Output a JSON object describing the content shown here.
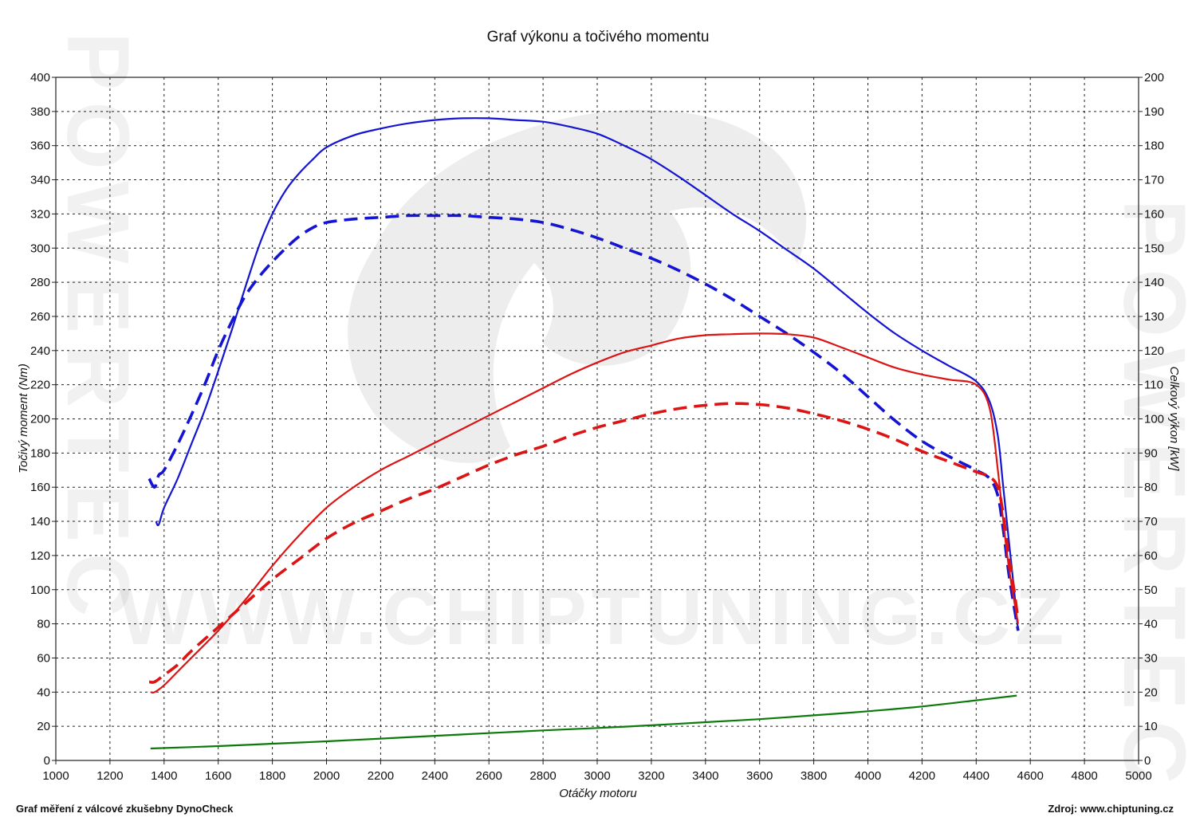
{
  "title": "Graf výkonu a točivého momentu",
  "footer_left": "Graf měření z válcové zkušebny DynoCheck",
  "footer_right": "Zdroj: www.chiptuning.cz",
  "watermark": "WWW.CHIPTUNING.CZ",
  "watermark_side": "POWERTEC",
  "chart_data": {
    "type": "line",
    "title": "Graf výkonu a točivého momentu",
    "xlabel": "Otáčky motoru",
    "ylabel_left": "Točivý moment (Nm)",
    "ylabel_right": "Celkový výkon [kW]",
    "xlim": [
      1000,
      5000
    ],
    "ylim_left": [
      0,
      400
    ],
    "ylim_right": [
      0,
      200
    ],
    "x_ticks": [
      1000,
      1200,
      1400,
      1600,
      1800,
      2000,
      2200,
      2400,
      2600,
      2800,
      3000,
      3200,
      3400,
      3600,
      3800,
      4000,
      4200,
      4400,
      4600,
      4800,
      5000
    ],
    "y_left_ticks": [
      0,
      20,
      40,
      60,
      80,
      100,
      120,
      140,
      160,
      180,
      200,
      220,
      240,
      260,
      280,
      300,
      320,
      340,
      360,
      380,
      400
    ],
    "y_right_ticks": [
      0,
      10,
      20,
      30,
      40,
      50,
      60,
      70,
      80,
      90,
      100,
      110,
      120,
      130,
      140,
      150,
      160,
      170,
      180,
      190,
      200
    ],
    "grid": true,
    "colors": {
      "torque": "#1414d2",
      "power": "#dc1414",
      "extra": "#0a7a0a"
    },
    "series": [
      {
        "axis": "left",
        "color": "#1414d2",
        "dash": false,
        "x": [
          1370,
          1380,
          1400,
          1450,
          1500,
          1550,
          1600,
          1650,
          1700,
          1750,
          1800,
          1850,
          1900,
          1950,
          2000,
          2100,
          2200,
          2300,
          2400,
          2500,
          2600,
          2700,
          2800,
          2900,
          3000,
          3100,
          3200,
          3300,
          3400,
          3500,
          3600,
          3700,
          3800,
          3900,
          4000,
          4100,
          4200,
          4300,
          4400,
          4450,
          4480,
          4500,
          4520,
          4540,
          4555
        ],
        "y": [
          140,
          138,
          148,
          165,
          185,
          205,
          228,
          252,
          277,
          301,
          320,
          334,
          344,
          352,
          359,
          366,
          370,
          373,
          375,
          376,
          376,
          375,
          374,
          371,
          367,
          360,
          352,
          342,
          331,
          320,
          310,
          299,
          288,
          275,
          262,
          250,
          240,
          231,
          222,
          210,
          190,
          160,
          130,
          100,
          76
        ]
      },
      {
        "axis": "left",
        "color": "#1414d2",
        "dash": true,
        "x": [
          1345,
          1365,
          1380,
          1400,
          1450,
          1500,
          1550,
          1600,
          1650,
          1700,
          1750,
          1800,
          1850,
          1900,
          1950,
          2000,
          2100,
          2200,
          2300,
          2400,
          2500,
          2600,
          2700,
          2800,
          2900,
          3000,
          3100,
          3200,
          3300,
          3400,
          3500,
          3600,
          3700,
          3800,
          3900,
          4000,
          4100,
          4200,
          4300,
          4400,
          4450,
          4480,
          4500,
          4520,
          4540,
          4555
        ],
        "y": [
          165,
          160,
          167,
          170,
          185,
          202,
          220,
          240,
          257,
          272,
          283,
          292,
          300,
          307,
          312,
          315,
          317,
          318,
          319,
          319,
          319,
          318,
          317,
          315,
          311,
          306,
          300,
          294,
          287,
          279,
          270,
          260,
          250,
          239,
          227,
          213,
          199,
          187,
          178,
          170,
          165,
          155,
          135,
          110,
          90,
          76
        ]
      },
      {
        "axis": "right",
        "color": "#dc1414",
        "dash": false,
        "x": [
          1350,
          1365,
          1400,
          1450,
          1500,
          1600,
          1700,
          1800,
          1900,
          2000,
          2100,
          2200,
          2300,
          2400,
          2500,
          2600,
          2700,
          2800,
          2900,
          3000,
          3100,
          3200,
          3300,
          3400,
          3500,
          3600,
          3700,
          3800,
          3900,
          4000,
          4100,
          4200,
          4300,
          4400,
          4450,
          4480,
          4500,
          4520,
          4540,
          4555
        ],
        "y": [
          20,
          20,
          22,
          26,
          30,
          38,
          47,
          57,
          66,
          74,
          80,
          85,
          89,
          93,
          97,
          101,
          105,
          109,
          113,
          116.5,
          119.5,
          121.5,
          123.5,
          124.5,
          124.8,
          125,
          124.8,
          123.8,
          121,
          118,
          115,
          113,
          111.5,
          110,
          103,
          85,
          70,
          57,
          47,
          40
        ]
      },
      {
        "axis": "right",
        "color": "#dc1414",
        "dash": true,
        "x": [
          1345,
          1365,
          1400,
          1450,
          1500,
          1600,
          1700,
          1800,
          1900,
          2000,
          2100,
          2200,
          2300,
          2400,
          2500,
          2600,
          2700,
          2800,
          2900,
          3000,
          3100,
          3200,
          3300,
          3400,
          3500,
          3600,
          3700,
          3800,
          3900,
          4000,
          4100,
          4200,
          4300,
          4400,
          4450,
          4480,
          4500,
          4520,
          4540,
          4555
        ],
        "y": [
          23,
          23,
          25,
          28,
          32,
          39,
          46,
          53,
          59,
          65,
          69.5,
          73,
          76.5,
          79.5,
          83,
          86.5,
          89.5,
          92,
          95,
          97.5,
          99.5,
          101.5,
          103,
          104,
          104.5,
          104.2,
          103.2,
          101.5,
          99.5,
          97,
          94,
          90.5,
          87.5,
          84.5,
          83,
          80,
          72,
          60,
          50,
          41
        ]
      },
      {
        "axis": "right",
        "color": "#0a7a0a",
        "dash": false,
        "x": [
          1350,
          1600,
          1800,
          2000,
          2200,
          2400,
          2600,
          2800,
          3000,
          3200,
          3400,
          3600,
          3800,
          4000,
          4200,
          4400,
          4550
        ],
        "y": [
          3.5,
          4.2,
          4.9,
          5.6,
          6.4,
          7.2,
          8,
          8.8,
          9.5,
          10.3,
          11.2,
          12.1,
          13.2,
          14.4,
          15.8,
          17.6,
          19
        ]
      }
    ]
  }
}
